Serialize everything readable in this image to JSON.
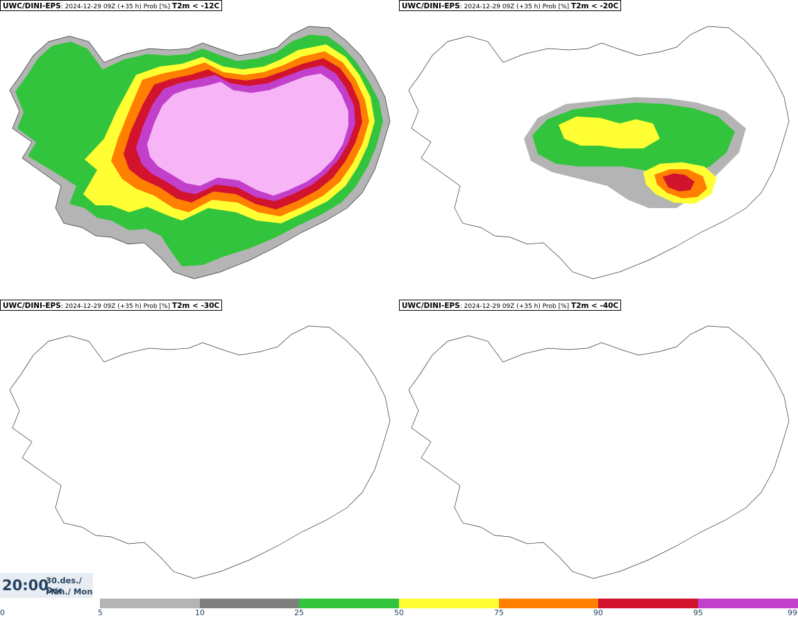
{
  "panels": [
    {
      "model": "UWC/DINI-EPS",
      "run": ": 2024-12-29 09Z (+35 h) Prob [%]",
      "threshold": "T2m < -12C",
      "coverage": "very-high"
    },
    {
      "model": "UWC/DINI-EPS",
      "run": ": 2024-12-29 09Z (+35 h) Prob [%]",
      "threshold": "T2m < -20C",
      "coverage": "partial"
    },
    {
      "model": "UWC/DINI-EPS",
      "run": ": 2024-12-29 09Z (+35 h) Prob [%]",
      "threshold": "T2m < -30C",
      "coverage": "none"
    },
    {
      "model": "UWC/DINI-EPS",
      "run": ": 2024-12-29 09Z (+35 h) Prob [%]",
      "threshold": "T2m < -40C",
      "coverage": "none"
    }
  ],
  "time": {
    "clock": "20:00",
    "date_line": "30.des./ Dec",
    "day_line": "Mán./ Mon"
  },
  "legend": {
    "ticks": [
      "0",
      "5",
      "10",
      "25",
      "50",
      "75",
      "90",
      "95",
      "99"
    ],
    "colors": [
      "#b4b4b4",
      "#7f7f7f",
      "#33c43d",
      "#ffff33",
      "#ff7f00",
      "#d2132d",
      "#c23fcc",
      "#f7b5f7"
    ]
  }
}
